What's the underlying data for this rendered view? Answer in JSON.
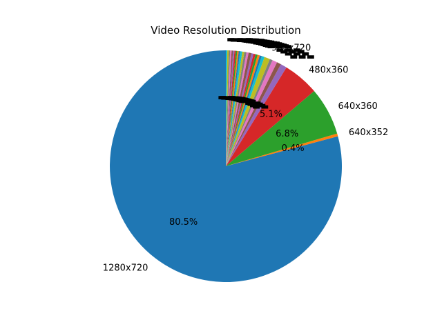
{
  "chart_data": {
    "type": "pie",
    "title": "Video Resolution Distribution",
    "start_angle_deg": 90,
    "direction": "counterclockwise",
    "slices": [
      {
        "label": "1280x720",
        "value": 80.5,
        "color": "#1f77b4",
        "pct_label": "80.5%"
      },
      {
        "label": "640x352",
        "value": 0.4,
        "color": "#ff7f0e",
        "pct_label": "0.4%"
      },
      {
        "label": "640x360",
        "value": 6.8,
        "color": "#2ca02c",
        "pct_label": "6.8%"
      },
      {
        "label": "480x360",
        "value": 5.1,
        "color": "#d62728",
        "pct_label": "5.1%"
      },
      {
        "label": "",
        "value": 0.9,
        "color": "#9467bd",
        "pct_label": ""
      },
      {
        "label": "",
        "value": 0.6,
        "color": "#8c564b",
        "pct_label": ""
      },
      {
        "label": "",
        "value": 0.7,
        "color": "#e377c2",
        "pct_label": ""
      },
      {
        "label": "",
        "value": 0.4,
        "color": "#7f7f7f",
        "pct_label": ""
      },
      {
        "label": "960x720",
        "value": 0.8,
        "color": "#bcbd22",
        "pct_label": ""
      },
      {
        "label": "",
        "value": 0.4,
        "color": "#17becf",
        "pct_label": ""
      },
      {
        "label": "",
        "value": 0.3,
        "color": "#1f77b4",
        "pct_label": ""
      },
      {
        "label": "",
        "value": 0.3,
        "color": "#ff7f0e",
        "pct_label": ""
      },
      {
        "label": "",
        "value": 0.3,
        "color": "#2ca02c",
        "pct_label": ""
      },
      {
        "label": "",
        "value": 0.3,
        "color": "#d62728",
        "pct_label": ""
      },
      {
        "label": "",
        "value": 0.3,
        "color": "#9467bd",
        "pct_label": ""
      },
      {
        "label": "",
        "value": 0.4,
        "color": "#8c564b",
        "pct_label": ""
      },
      {
        "label": "",
        "value": 0.3,
        "color": "#e377c2",
        "pct_label": ""
      },
      {
        "label": "",
        "value": 0.3,
        "color": "#7f7f7f",
        "pct_label": ""
      },
      {
        "label": "",
        "value": 0.3,
        "color": "#bcbd22",
        "pct_label": ""
      },
      {
        "label": "",
        "value": 0.3,
        "color": "#17becf",
        "pct_label": ""
      },
      {
        "label": "",
        "value": 0.2,
        "color": "#1f77b4",
        "pct_label": ""
      },
      {
        "label": "",
        "value": 0.2,
        "color": "#ff7f0e",
        "pct_label": ""
      },
      {
        "label": "",
        "value": 0.2,
        "color": "#2ca02c",
        "pct_label": ""
      },
      {
        "label": "",
        "value": 0.2,
        "color": "#d62728",
        "pct_label": ""
      },
      {
        "label": "",
        "value": 0.2,
        "color": "#9467bd",
        "pct_label": ""
      },
      {
        "label": "",
        "value": 0.2,
        "color": "#8c564b",
        "pct_label": ""
      },
      {
        "label": "",
        "value": 0.2,
        "color": "#e377c2",
        "pct_label": ""
      },
      {
        "label": "",
        "value": 0.2,
        "color": "#7f7f7f",
        "pct_label": ""
      },
      {
        "label": "",
        "value": 0.2,
        "color": "#bcbd22",
        "pct_label": ""
      },
      {
        "label": "",
        "value": 0.2,
        "color": "#17becf",
        "pct_label": ""
      }
    ],
    "legend": "none"
  }
}
